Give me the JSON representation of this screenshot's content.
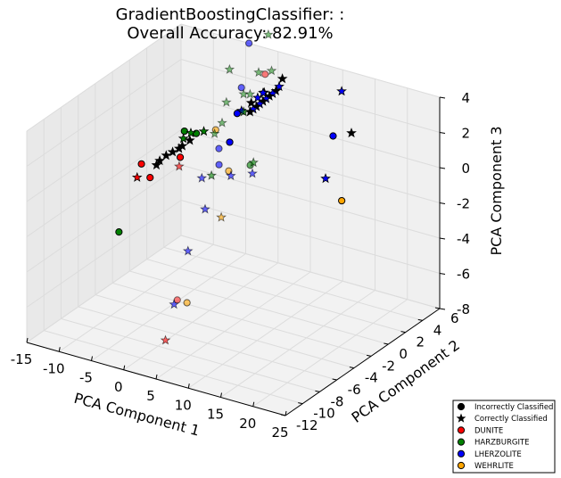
{
  "chart_data": {
    "type": "scatter",
    "projection": "3d",
    "title_line1": "GradientBoostingClassifier: :",
    "title_line2": "Overall Accuracy: 82.91%",
    "xlabel": "PCA Component 1",
    "ylabel": "PCA Component 2",
    "zlabel": "PCA Component 3",
    "xlim": [
      -15,
      25
    ],
    "ylim": [
      -12,
      6
    ],
    "zlim": [
      -8,
      4
    ],
    "xticks": [
      "-15",
      "-10",
      "-5",
      "0",
      "5",
      "10",
      "15",
      "20",
      "25"
    ],
    "yticks": [
      "-12",
      "-10",
      "-8",
      "-6",
      "-4",
      "-2",
      "0",
      "2",
      "4",
      "6"
    ],
    "zticks": [
      "-8",
      "-6",
      "-4",
      "-2",
      "0",
      "2",
      "4"
    ],
    "grid": true,
    "legend_position": "lower-right",
    "legend": [
      {
        "label": "Incorrectly Classified",
        "marker": "circle",
        "color": "#000000"
      },
      {
        "label": "Correctly Classified",
        "marker": "star",
        "color": "#000000"
      },
      {
        "label": "DUNITE",
        "marker": "circle",
        "color": "#ff0000"
      },
      {
        "label": "HARZBURGITE",
        "marker": "circle",
        "color": "#008000"
      },
      {
        "label": "LHERZOLITE",
        "marker": "circle",
        "color": "#0000ff"
      },
      {
        "label": "WEHRLITE",
        "marker": "circle",
        "color": "#ffa500"
      }
    ],
    "class_colors": {
      "D": "#ff0000",
      "H": "#008000",
      "L": "#0000ff",
      "W": "#ffa500",
      "K": "#000000"
    },
    "points": [
      {
        "x": 10.5,
        "y": 4.5,
        "z": 0.8,
        "class": "L",
        "marker": "circle",
        "alpha": 1.0
      },
      {
        "x": 12.5,
        "y": 4.0,
        "z": -2.5,
        "class": "W",
        "marker": "circle",
        "alpha": 1.0
      },
      {
        "x": 10.5,
        "y": 5.5,
        "z": 3.0,
        "class": "L",
        "marker": "star",
        "alpha": 1.0
      },
      {
        "x": 14.0,
        "y": 4.0,
        "z": 1.5,
        "class": "K",
        "marker": "star",
        "alpha": 1.0
      },
      {
        "x": 10.0,
        "y": 4.0,
        "z": -1.5,
        "class": "L",
        "marker": "star",
        "alpha": 1.0
      },
      {
        "x": 2.0,
        "y": 5.0,
        "z": 3.0,
        "class": "K",
        "marker": "star",
        "alpha": 1.0
      },
      {
        "x": 1.5,
        "y": 5.0,
        "z": 2.5,
        "class": "L",
        "marker": "star",
        "alpha": 1.0
      },
      {
        "x": 1.0,
        "y": 5.0,
        "z": 2.2,
        "class": "K",
        "marker": "star",
        "alpha": 1.0
      },
      {
        "x": 0.5,
        "y": 5.0,
        "z": 2.0,
        "class": "L",
        "marker": "star",
        "alpha": 1.0
      },
      {
        "x": 0.0,
        "y": 5.0,
        "z": 1.8,
        "class": "K",
        "marker": "star",
        "alpha": 1.0
      },
      {
        "x": -0.5,
        "y": 5.0,
        "z": 1.6,
        "class": "L",
        "marker": "star",
        "alpha": 1.0
      },
      {
        "x": -1.0,
        "y": 5.0,
        "z": 1.4,
        "class": "K",
        "marker": "star",
        "alpha": 1.0
      },
      {
        "x": -1.5,
        "y": 5.0,
        "z": 1.2,
        "class": "L",
        "marker": "star",
        "alpha": 1.0
      },
      {
        "x": -2.0,
        "y": 5.0,
        "z": 1.0,
        "class": "K",
        "marker": "star",
        "alpha": 1.0
      },
      {
        "x": -2.5,
        "y": 5.0,
        "z": 0.8,
        "class": "L",
        "marker": "star",
        "alpha": 1.0
      },
      {
        "x": -3.0,
        "y": 5.0,
        "z": 0.6,
        "class": "K",
        "marker": "star",
        "alpha": 1.0
      },
      {
        "x": 0.5,
        "y": 4.0,
        "z": 2.4,
        "class": "K",
        "marker": "star",
        "alpha": 1.0
      },
      {
        "x": -0.5,
        "y": 4.0,
        "z": 2.0,
        "class": "L",
        "marker": "star",
        "alpha": 1.0
      },
      {
        "x": -1.5,
        "y": 4.0,
        "z": 1.6,
        "class": "K",
        "marker": "star",
        "alpha": 1.0
      },
      {
        "x": 1.0,
        "y": 3.5,
        "z": 2.6,
        "class": "L",
        "marker": "star",
        "alpha": 1.0
      },
      {
        "x": -2.0,
        "y": 3.5,
        "z": 1.2,
        "class": "H",
        "marker": "star",
        "alpha": 0.5
      },
      {
        "x": -3.0,
        "y": 4.0,
        "z": 1.0,
        "class": "L",
        "marker": "star",
        "alpha": 1.0
      },
      {
        "x": -4.0,
        "y": 5.0,
        "z": 0.5,
        "class": "H",
        "marker": "star",
        "alpha": 0.5
      },
      {
        "x": -5.0,
        "y": 5.0,
        "z": 0.3,
        "class": "L",
        "marker": "circle",
        "alpha": 1.0
      },
      {
        "x": -4.0,
        "y": 5.0,
        "z": 1.5,
        "class": "H",
        "marker": "star",
        "alpha": 0.5
      },
      {
        "x": -3.0,
        "y": 5.0,
        "z": 1.6,
        "class": "H",
        "marker": "star",
        "alpha": 0.5
      },
      {
        "x": -5.0,
        "y": 5.5,
        "z": 1.6,
        "class": "L",
        "marker": "circle",
        "alpha": 0.6
      },
      {
        "x": -6.0,
        "y": 4.5,
        "z": 1.0,
        "class": "H",
        "marker": "star",
        "alpha": 0.5
      },
      {
        "x": -2.0,
        "y": 6.0,
        "z": 2.5,
        "class": "D",
        "marker": "circle",
        "alpha": 0.5
      },
      {
        "x": -3.0,
        "y": 6.0,
        "z": 2.5,
        "class": "H",
        "marker": "star",
        "alpha": 0.5
      },
      {
        "x": -1.0,
        "y": 6.0,
        "z": 2.8,
        "class": "H",
        "marker": "star",
        "alpha": 0.5
      },
      {
        "x": -4.5,
        "y": 6.0,
        "z": 4.0,
        "class": "L",
        "marker": "circle",
        "alpha": 0.6
      },
      {
        "x": -1.5,
        "y": 6.0,
        "z": 4.8,
        "class": "H",
        "marker": "star",
        "alpha": 0.5
      },
      {
        "x": -7.5,
        "y": 6.0,
        "z": 2.2,
        "class": "H",
        "marker": "star",
        "alpha": 0.5
      },
      {
        "x": -6.0,
        "y": 4.0,
        "z": 0.0,
        "class": "H",
        "marker": "star",
        "alpha": 0.5
      },
      {
        "x": -7.0,
        "y": 4.0,
        "z": -0.5,
        "class": "W",
        "marker": "circle",
        "alpha": 0.6
      },
      {
        "x": -6.5,
        "y": 3.5,
        "z": -0.5,
        "class": "H",
        "marker": "star",
        "alpha": 0.5
      },
      {
        "x": -7.5,
        "y": 3.0,
        "z": -0.3,
        "class": "H",
        "marker": "star",
        "alpha": 1.0
      },
      {
        "x": -8.0,
        "y": 2.5,
        "z": -0.3,
        "class": "H",
        "marker": "circle",
        "alpha": 1.0
      },
      {
        "x": -9.0,
        "y": 2.5,
        "z": -0.8,
        "class": "K",
        "marker": "star",
        "alpha": 1.0
      },
      {
        "x": -9.5,
        "y": 2.0,
        "z": -1.0,
        "class": "K",
        "marker": "star",
        "alpha": 1.0
      },
      {
        "x": -10.0,
        "y": 2.0,
        "z": -1.2,
        "class": "K",
        "marker": "star",
        "alpha": 1.0
      },
      {
        "x": -11.0,
        "y": 2.0,
        "z": -1.5,
        "class": "K",
        "marker": "star",
        "alpha": 1.0
      },
      {
        "x": -12.0,
        "y": 2.0,
        "z": -1.8,
        "class": "K",
        "marker": "star",
        "alpha": 1.0
      },
      {
        "x": -13.0,
        "y": 2.0,
        "z": -2.2,
        "class": "K",
        "marker": "star",
        "alpha": 1.0
      },
      {
        "x": -13.5,
        "y": 2.0,
        "z": -2.5,
        "class": "K",
        "marker": "star",
        "alpha": 1.0
      },
      {
        "x": -10.0,
        "y": 2.5,
        "z": -0.8,
        "class": "H",
        "marker": "star",
        "alpha": 1.0
      },
      {
        "x": -10.5,
        "y": 3.0,
        "z": -0.6,
        "class": "H",
        "marker": "circle",
        "alpha": 1.0
      },
      {
        "x": -9.5,
        "y": 3.0,
        "z": -0.6,
        "class": "H",
        "marker": "star",
        "alpha": 1.0
      },
      {
        "x": -8.5,
        "y": 1.0,
        "z": -1.2,
        "class": "D",
        "marker": "circle",
        "alpha": 1.0
      },
      {
        "x": -8.0,
        "y": 0.5,
        "z": -1.5,
        "class": "D",
        "marker": "star",
        "alpha": 0.6
      },
      {
        "x": -14.5,
        "y": 1.0,
        "z": -2.2,
        "class": "D",
        "marker": "circle",
        "alpha": 1.0
      },
      {
        "x": -14.5,
        "y": 0.5,
        "z": -2.8,
        "class": "D",
        "marker": "star",
        "alpha": 1.0
      },
      {
        "x": -12.5,
        "y": 0.5,
        "z": -2.6,
        "class": "D",
        "marker": "circle",
        "alpha": 1.0
      },
      {
        "x": -14.0,
        "y": -2.0,
        "z": -5.0,
        "class": "H",
        "marker": "circle",
        "alpha": 1.0
      },
      {
        "x": -3.5,
        "y": 3.0,
        "z": -0.5,
        "class": "L",
        "marker": "circle",
        "alpha": 1.0
      },
      {
        "x": -4.5,
        "y": 2.5,
        "z": -0.8,
        "class": "L",
        "marker": "circle",
        "alpha": 0.6
      },
      {
        "x": -2.5,
        "y": 1.0,
        "z": -1.0,
        "class": "L",
        "marker": "circle",
        "alpha": 0.6
      },
      {
        "x": -4.5,
        "y": 0.5,
        "z": -1.8,
        "class": "L",
        "marker": "star",
        "alpha": 0.6
      },
      {
        "x": -3.0,
        "y": 0.5,
        "z": -1.5,
        "class": "H",
        "marker": "star",
        "alpha": 0.6
      },
      {
        "x": -1.0,
        "y": 1.0,
        "z": -1.2,
        "class": "W",
        "marker": "circle",
        "alpha": 0.6
      },
      {
        "x": 1.0,
        "y": 2.0,
        "z": -1.0,
        "class": "H",
        "marker": "circle",
        "alpha": 0.6
      },
      {
        "x": 1.5,
        "y": 2.0,
        "z": -0.8,
        "class": "H",
        "marker": "star",
        "alpha": 0.6
      },
      {
        "x": 2.0,
        "y": 1.5,
        "z": -1.2,
        "class": "L",
        "marker": "star",
        "alpha": 0.6
      },
      {
        "x": 0.0,
        "y": 0.5,
        "z": -1.2,
        "class": "L",
        "marker": "star",
        "alpha": 0.6
      },
      {
        "x": -2.0,
        "y": -1.0,
        "z": -2.8,
        "class": "L",
        "marker": "star",
        "alpha": 0.6
      },
      {
        "x": 0.5,
        "y": -1.0,
        "z": -3.0,
        "class": "W",
        "marker": "star",
        "alpha": 0.6
      },
      {
        "x": -2.0,
        "y": -3.0,
        "z": -4.5,
        "class": "L",
        "marker": "star",
        "alpha": 0.6
      },
      {
        "x": -1.0,
        "y": -5.0,
        "z": -6.5,
        "class": "D",
        "marker": "circle",
        "alpha": 0.5
      },
      {
        "x": -1.5,
        "y": -5.0,
        "z": -6.8,
        "class": "L",
        "marker": "star",
        "alpha": 0.6
      },
      {
        "x": 0.5,
        "y": -5.0,
        "z": -6.5,
        "class": "W",
        "marker": "circle",
        "alpha": 0.6
      },
      {
        "x": -1.5,
        "y": -6.0,
        "z": -8.5,
        "class": "D",
        "marker": "star",
        "alpha": 0.6
      }
    ]
  }
}
